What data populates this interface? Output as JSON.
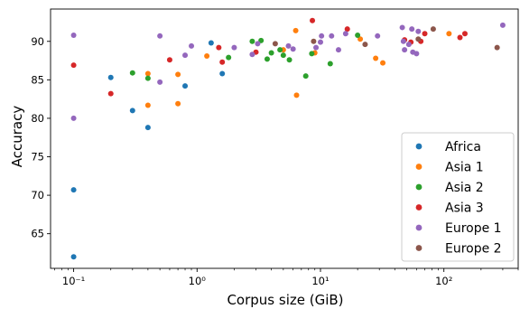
{
  "chart_data": {
    "type": "scatter",
    "title": "",
    "xlabel": "Corpus size (GiB)",
    "ylabel": "Accuracy",
    "xscale": "log",
    "xlim": [
      0.065,
      400
    ],
    "ylim": [
      60.5,
      94.2
    ],
    "xticks": [
      {
        "value": 0.1,
        "label": "10⁻¹"
      },
      {
        "value": 1,
        "label": "10⁰"
      },
      {
        "value": 10,
        "label": "10¹"
      },
      {
        "value": 100,
        "label": "10²"
      }
    ],
    "yticks": [
      65,
      70,
      75,
      80,
      85,
      90
    ],
    "grid": false,
    "legend_position": "lower-right",
    "series": [
      {
        "name": "Africa",
        "color": "#1f77b4",
        "points": [
          {
            "x": 0.1,
            "y": 62.0
          },
          {
            "x": 0.1,
            "y": 70.7
          },
          {
            "x": 0.2,
            "y": 85.3
          },
          {
            "x": 0.3,
            "y": 81.0
          },
          {
            "x": 0.4,
            "y": 78.8
          },
          {
            "x": 0.8,
            "y": 84.2
          },
          {
            "x": 1.3,
            "y": 89.8
          },
          {
            "x": 1.6,
            "y": 85.8
          }
        ]
      },
      {
        "name": "Asia 1",
        "color": "#ff7f0e",
        "points": [
          {
            "x": 0.4,
            "y": 85.8
          },
          {
            "x": 0.4,
            "y": 81.7
          },
          {
            "x": 0.7,
            "y": 85.7
          },
          {
            "x": 0.7,
            "y": 81.9
          },
          {
            "x": 1.2,
            "y": 88.1
          },
          {
            "x": 5.0,
            "y": 88.9
          },
          {
            "x": 6.3,
            "y": 91.4
          },
          {
            "x": 6.4,
            "y": 83.0
          },
          {
            "x": 9.0,
            "y": 88.5
          },
          {
            "x": 21.0,
            "y": 90.3
          },
          {
            "x": 28.0,
            "y": 87.8
          },
          {
            "x": 32.0,
            "y": 87.2
          },
          {
            "x": 110.0,
            "y": 91.0
          }
        ]
      },
      {
        "name": "Asia 2",
        "color": "#2ca02c",
        "points": [
          {
            "x": 0.3,
            "y": 85.9
          },
          {
            "x": 0.4,
            "y": 85.2
          },
          {
            "x": 1.8,
            "y": 87.9
          },
          {
            "x": 2.8,
            "y": 90.0
          },
          {
            "x": 3.3,
            "y": 90.1
          },
          {
            "x": 3.7,
            "y": 87.7
          },
          {
            "x": 4.0,
            "y": 88.5
          },
          {
            "x": 4.7,
            "y": 88.9
          },
          {
            "x": 5.0,
            "y": 88.2
          },
          {
            "x": 5.6,
            "y": 87.6
          },
          {
            "x": 7.6,
            "y": 85.5
          },
          {
            "x": 8.5,
            "y": 88.4
          },
          {
            "x": 12.0,
            "y": 87.1
          },
          {
            "x": 20.0,
            "y": 90.8
          }
        ]
      },
      {
        "name": "Asia 3",
        "color": "#d62728",
        "points": [
          {
            "x": 0.1,
            "y": 86.9
          },
          {
            "x": 0.2,
            "y": 83.2
          },
          {
            "x": 0.6,
            "y": 87.6
          },
          {
            "x": 1.5,
            "y": 89.2
          },
          {
            "x": 1.6,
            "y": 87.3
          },
          {
            "x": 3.0,
            "y": 88.6
          },
          {
            "x": 8.6,
            "y": 92.7
          },
          {
            "x": 16.5,
            "y": 91.6
          },
          {
            "x": 48.0,
            "y": 90.2
          },
          {
            "x": 54.0,
            "y": 89.9
          },
          {
            "x": 65.0,
            "y": 90.0
          },
          {
            "x": 70.0,
            "y": 91.0
          },
          {
            "x": 135.0,
            "y": 90.5
          },
          {
            "x": 148.0,
            "y": 91.0
          }
        ]
      },
      {
        "name": "Europe 1",
        "color": "#9467bd",
        "points": [
          {
            "x": 0.1,
            "y": 90.8
          },
          {
            "x": 0.1,
            "y": 80.0
          },
          {
            "x": 0.5,
            "y": 90.7
          },
          {
            "x": 0.5,
            "y": 84.7
          },
          {
            "x": 0.8,
            "y": 88.2
          },
          {
            "x": 0.9,
            "y": 89.4
          },
          {
            "x": 2.0,
            "y": 89.2
          },
          {
            "x": 2.8,
            "y": 88.3
          },
          {
            "x": 3.1,
            "y": 89.7
          },
          {
            "x": 5.5,
            "y": 89.4
          },
          {
            "x": 6.0,
            "y": 89.0
          },
          {
            "x": 9.2,
            "y": 89.2
          },
          {
            "x": 10.0,
            "y": 89.9
          },
          {
            "x": 10.2,
            "y": 90.7
          },
          {
            "x": 12.3,
            "y": 90.7
          },
          {
            "x": 14.0,
            "y": 88.9
          },
          {
            "x": 16.0,
            "y": 91.0
          },
          {
            "x": 29.0,
            "y": 90.7
          },
          {
            "x": 46.0,
            "y": 91.8
          },
          {
            "x": 47.0,
            "y": 90.0
          },
          {
            "x": 48.0,
            "y": 88.9
          },
          {
            "x": 52.0,
            "y": 89.6
          },
          {
            "x": 55.0,
            "y": 91.6
          },
          {
            "x": 56.0,
            "y": 88.6
          },
          {
            "x": 60.0,
            "y": 88.4
          },
          {
            "x": 62.0,
            "y": 91.3
          },
          {
            "x": 300.0,
            "y": 92.1
          }
        ]
      },
      {
        "name": "Europe 2",
        "color": "#8c564b",
        "points": [
          {
            "x": 4.3,
            "y": 89.7
          },
          {
            "x": 8.8,
            "y": 90.0
          },
          {
            "x": 23.0,
            "y": 89.6
          },
          {
            "x": 62.0,
            "y": 90.3
          },
          {
            "x": 82.0,
            "y": 91.6
          },
          {
            "x": 270.0,
            "y": 89.2
          }
        ]
      }
    ]
  }
}
